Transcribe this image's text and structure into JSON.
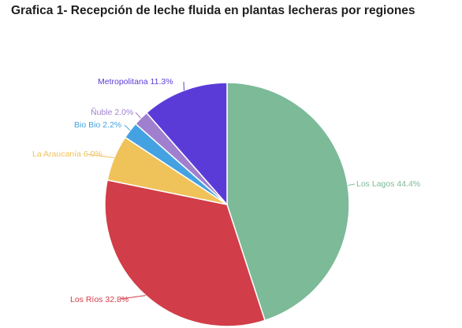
{
  "chart_data": {
    "type": "pie",
    "title": "Grafica 1- Recepción de leche fluida en plantas lecheras por regiones",
    "slices": [
      {
        "name": "Los Lagos",
        "value": 44.4,
        "label": "Los Lagos 44.4%",
        "color": "#7cba98"
      },
      {
        "name": "Los Ríos",
        "value": 32.8,
        "label": "Los Ríos 32.8%",
        "color": "#d13d48"
      },
      {
        "name": "La Araucanía",
        "value": 6.0,
        "label": "La Araucanía 6.0%",
        "color": "#f0c25a"
      },
      {
        "name": "Bio Bio",
        "value": 2.2,
        "label": "Bio Bio 2.2%",
        "color": "#45a2e2"
      },
      {
        "name": "Ñuble",
        "value": 2.0,
        "label": "Ñuble 2.0%",
        "color": "#a07fcf"
      },
      {
        "name": "Metropolitana",
        "value": 11.3,
        "label": "Metropolitana 11.3%",
        "color": "#5b3bd8"
      }
    ],
    "start": "12 o'clock",
    "direction": "clockwise",
    "labels": "outside with leader lines",
    "legend": "none"
  }
}
